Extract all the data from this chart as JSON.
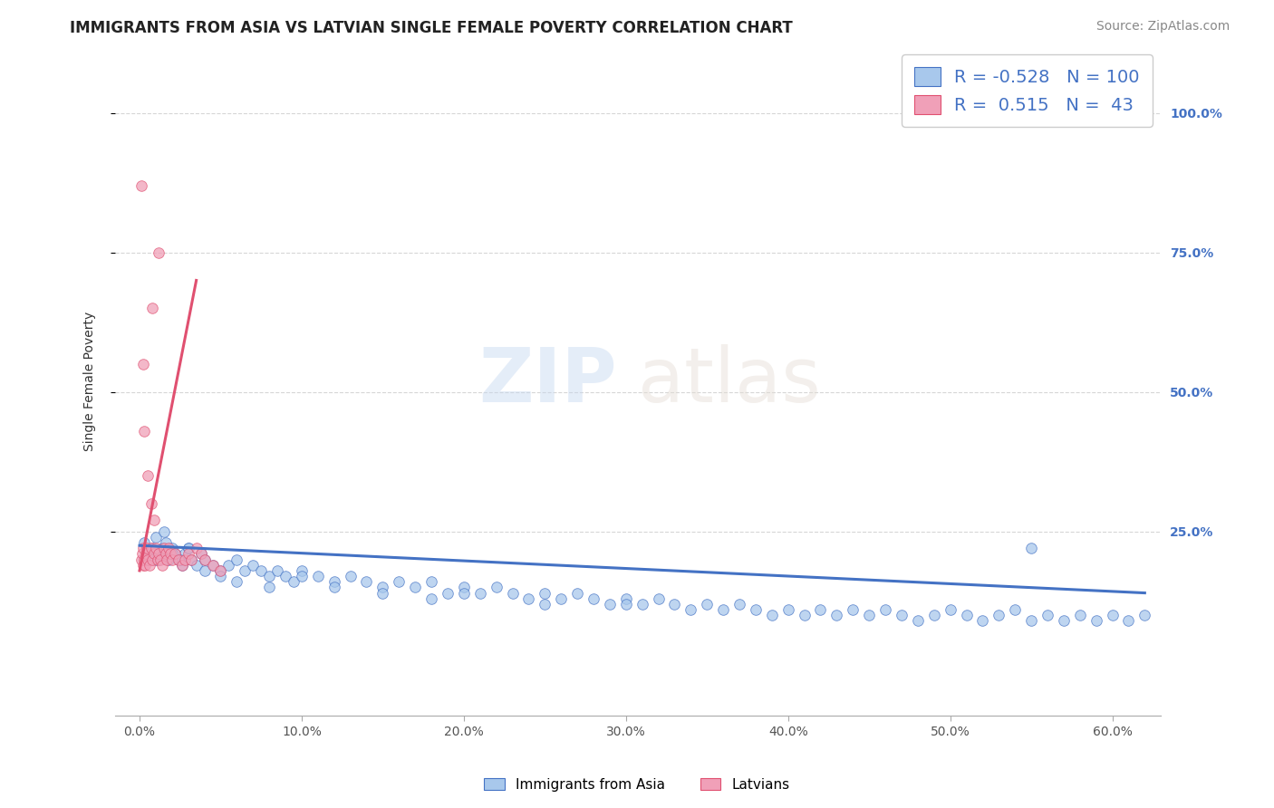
{
  "title": "IMMIGRANTS FROM ASIA VS LATVIAN SINGLE FEMALE POVERTY CORRELATION CHART",
  "source": "Source: ZipAtlas.com",
  "ylabel": "Single Female Poverty",
  "x_tick_labels": [
    "0.0%",
    "10.0%",
    "20.0%",
    "30.0%",
    "40.0%",
    "50.0%",
    "60.0%"
  ],
  "x_tick_values": [
    0.0,
    10.0,
    20.0,
    30.0,
    40.0,
    50.0,
    60.0
  ],
  "y_tick_labels": [
    "25.0%",
    "50.0%",
    "75.0%",
    "100.0%"
  ],
  "y_tick_values": [
    25.0,
    50.0,
    75.0,
    100.0
  ],
  "xlim": [
    -1.5,
    63
  ],
  "ylim": [
    -8,
    112
  ],
  "blue_R": -0.528,
  "blue_N": 100,
  "pink_R": 0.515,
  "pink_N": 43,
  "blue_line_color": "#4472C4",
  "pink_line_color": "#E05070",
  "blue_scatter_color": "#A8C8EC",
  "pink_scatter_color": "#F0A0B8",
  "legend_label_blue": "Immigrants from Asia",
  "legend_label_pink": "Latvians",
  "title_fontsize": 12,
  "source_fontsize": 10,
  "blue_scatter_x": [
    0.3,
    0.5,
    0.8,
    1.0,
    1.2,
    1.4,
    1.5,
    1.6,
    1.8,
    2.0,
    2.2,
    2.4,
    2.6,
    2.8,
    3.0,
    3.2,
    3.5,
    3.8,
    4.0,
    4.5,
    5.0,
    5.5,
    6.0,
    6.5,
    7.0,
    7.5,
    8.0,
    8.5,
    9.0,
    9.5,
    10.0,
    11.0,
    12.0,
    13.0,
    14.0,
    15.0,
    16.0,
    17.0,
    18.0,
    19.0,
    20.0,
    21.0,
    22.0,
    23.0,
    24.0,
    25.0,
    26.0,
    27.0,
    28.0,
    29.0,
    30.0,
    31.0,
    32.0,
    33.0,
    34.0,
    35.0,
    36.0,
    37.0,
    38.0,
    39.0,
    40.0,
    41.0,
    42.0,
    43.0,
    44.0,
    45.0,
    46.0,
    47.0,
    48.0,
    49.0,
    50.0,
    51.0,
    52.0,
    53.0,
    54.0,
    55.0,
    56.0,
    57.0,
    58.0,
    59.0,
    60.0,
    61.0,
    62.0,
    1.0,
    1.5,
    2.0,
    2.5,
    3.0,
    30.0,
    55.0,
    4.0,
    5.0,
    6.0,
    8.0,
    10.0,
    12.0,
    15.0,
    18.0,
    20.0,
    25.0
  ],
  "blue_scatter_y": [
    23.0,
    21.0,
    22.0,
    24.0,
    20.0,
    22.0,
    21.0,
    23.0,
    20.0,
    22.0,
    21.0,
    20.0,
    19.0,
    21.0,
    22.0,
    20.0,
    19.0,
    21.0,
    20.0,
    19.0,
    18.0,
    19.0,
    20.0,
    18.0,
    19.0,
    18.0,
    17.0,
    18.0,
    17.0,
    16.0,
    18.0,
    17.0,
    16.0,
    17.0,
    16.0,
    15.0,
    16.0,
    15.0,
    16.0,
    14.0,
    15.0,
    14.0,
    15.0,
    14.0,
    13.0,
    14.0,
    13.0,
    14.0,
    13.0,
    12.0,
    13.0,
    12.0,
    13.0,
    12.0,
    11.0,
    12.0,
    11.0,
    12.0,
    11.0,
    10.0,
    11.0,
    10.0,
    11.0,
    10.0,
    11.0,
    10.0,
    11.0,
    10.0,
    9.0,
    10.0,
    11.0,
    10.0,
    9.0,
    10.0,
    11.0,
    9.0,
    10.0,
    9.0,
    10.0,
    9.0,
    10.0,
    9.0,
    10.0,
    20.0,
    25.0,
    21.0,
    20.0,
    22.0,
    12.0,
    22.0,
    18.0,
    17.0,
    16.0,
    15.0,
    17.0,
    15.0,
    14.0,
    13.0,
    14.0,
    12.0
  ],
  "pink_scatter_x": [
    0.1,
    0.15,
    0.2,
    0.25,
    0.3,
    0.35,
    0.4,
    0.45,
    0.5,
    0.6,
    0.7,
    0.8,
    0.9,
    1.0,
    1.1,
    1.2,
    1.3,
    1.4,
    1.5,
    1.6,
    1.7,
    1.8,
    1.9,
    2.0,
    2.2,
    2.4,
    2.6,
    2.8,
    3.0,
    3.2,
    3.5,
    3.8,
    4.0,
    4.5,
    5.0,
    0.2,
    0.3,
    0.5,
    0.7,
    0.9,
    0.1,
    0.8,
    1.2
  ],
  "pink_scatter_y": [
    20.0,
    21.0,
    19.0,
    22.0,
    20.0,
    19.0,
    21.0,
    22.0,
    20.0,
    19.0,
    22.0,
    20.0,
    21.0,
    22.0,
    20.0,
    21.0,
    20.0,
    19.0,
    22.0,
    21.0,
    20.0,
    22.0,
    21.0,
    20.0,
    21.0,
    20.0,
    19.0,
    20.0,
    21.0,
    20.0,
    22.0,
    21.0,
    20.0,
    19.0,
    18.0,
    55.0,
    43.0,
    35.0,
    30.0,
    27.0,
    87.0,
    65.0,
    75.0
  ],
  "pink_trendline_x0": 0.0,
  "pink_trendline_y0": 18.0,
  "pink_trendline_x1": 3.5,
  "pink_trendline_y1": 70.0,
  "blue_trendline_x0": 0.0,
  "blue_trendline_y0": 22.5,
  "blue_trendline_x1": 62.0,
  "blue_trendline_y1": 14.0
}
